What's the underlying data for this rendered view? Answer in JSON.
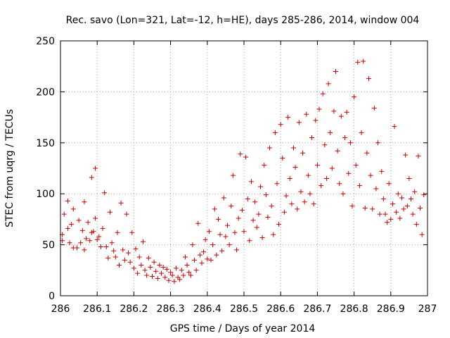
{
  "chart_data": {
    "type": "scatter",
    "title": "Rec. savo (Lon=321, Lat=-12, h=HE), days 285-286, 2014, window 004",
    "xlabel": "GPS time / Days of year 2014",
    "ylabel": "STEC from uqrg / TECUs",
    "xlim": [
      286,
      287
    ],
    "ylim": [
      0,
      250
    ],
    "xticks": [
      286,
      286.1,
      286.2,
      286.3,
      286.4,
      286.5,
      286.6,
      286.7,
      286.8,
      286.9,
      287
    ],
    "xtick_labels": [
      "286",
      "286.1",
      "286.2",
      "286.3",
      "286.4",
      "286.5",
      "286.6",
      "286.7",
      "286.8",
      "286.9",
      "287"
    ],
    "yticks": [
      0,
      50,
      100,
      150,
      200,
      250
    ],
    "ytick_labels": [
      "0",
      "50",
      "100",
      "150",
      "200",
      "250"
    ],
    "grid": true,
    "marker": "+",
    "color": "#cc0000",
    "points": [
      [
        286.005,
        54
      ],
      [
        286.005,
        60
      ],
      [
        286.01,
        80
      ],
      [
        286.02,
        93
      ],
      [
        286.02,
        66
      ],
      [
        286.025,
        52
      ],
      [
        286.03,
        70
      ],
      [
        286.035,
        47
      ],
      [
        286.035,
        85
      ],
      [
        286.045,
        47
      ],
      [
        286.05,
        74
      ],
      [
        286.055,
        52
      ],
      [
        286.06,
        64
      ],
      [
        286.065,
        92
      ],
      [
        286.065,
        45
      ],
      [
        286.07,
        56
      ],
      [
        286.075,
        72
      ],
      [
        286.08,
        54
      ],
      [
        286.085,
        62
      ],
      [
        286.085,
        116
      ],
      [
        286.09,
        63
      ],
      [
        286.095,
        76
      ],
      [
        286.095,
        125
      ],
      [
        286.1,
        55
      ],
      [
        286.105,
        58
      ],
      [
        286.11,
        48
      ],
      [
        286.115,
        66
      ],
      [
        286.12,
        101
      ],
      [
        286.125,
        48
      ],
      [
        286.13,
        37
      ],
      [
        286.135,
        82
      ],
      [
        286.14,
        52
      ],
      [
        286.145,
        44
      ],
      [
        286.15,
        38
      ],
      [
        286.155,
        62
      ],
      [
        286.16,
        30
      ],
      [
        286.165,
        91
      ],
      [
        286.17,
        45
      ],
      [
        286.175,
        35
      ],
      [
        286.18,
        80
      ],
      [
        286.185,
        42
      ],
      [
        286.19,
        33
      ],
      [
        286.195,
        62
      ],
      [
        286.2,
        27
      ],
      [
        286.205,
        46
      ],
      [
        286.21,
        22
      ],
      [
        286.215,
        38
      ],
      [
        286.22,
        30
      ],
      [
        286.225,
        53
      ],
      [
        286.23,
        25
      ],
      [
        286.235,
        20
      ],
      [
        286.24,
        37
      ],
      [
        286.245,
        28
      ],
      [
        286.25,
        19
      ],
      [
        286.255,
        33
      ],
      [
        286.26,
        24
      ],
      [
        286.265,
        17
      ],
      [
        286.27,
        30
      ],
      [
        286.275,
        22
      ],
      [
        286.28,
        28
      ],
      [
        286.285,
        18
      ],
      [
        286.29,
        26
      ],
      [
        286.295,
        15
      ],
      [
        286.3,
        23
      ],
      [
        286.305,
        20
      ],
      [
        286.31,
        14
      ],
      [
        286.315,
        27
      ],
      [
        286.32,
        18
      ],
      [
        286.325,
        16
      ],
      [
        286.33,
        25
      ],
      [
        286.335,
        20
      ],
      [
        286.34,
        38
      ],
      [
        286.345,
        30
      ],
      [
        286.35,
        23
      ],
      [
        286.355,
        20
      ],
      [
        286.36,
        50
      ],
      [
        286.365,
        35
      ],
      [
        286.37,
        25
      ],
      [
        286.375,
        71
      ],
      [
        286.38,
        40
      ],
      [
        286.385,
        32
      ],
      [
        286.39,
        43
      ],
      [
        286.395,
        55
      ],
      [
        286.4,
        36
      ],
      [
        286.405,
        63
      ],
      [
        286.41,
        35
      ],
      [
        286.415,
        50
      ],
      [
        286.42,
        85
      ],
      [
        286.425,
        40
      ],
      [
        286.43,
        75
      ],
      [
        286.435,
        60
      ],
      [
        286.44,
        44
      ],
      [
        286.445,
        96
      ],
      [
        286.45,
        58
      ],
      [
        286.455,
        69
      ],
      [
        286.46,
        50
      ],
      [
        286.465,
        88
      ],
      [
        286.47,
        118
      ],
      [
        286.475,
        62
      ],
      [
        286.48,
        45
      ],
      [
        286.485,
        76
      ],
      [
        286.49,
        139
      ],
      [
        286.495,
        84
      ],
      [
        286.5,
        63
      ],
      [
        286.505,
        136
      ],
      [
        286.51,
        95
      ],
      [
        286.515,
        54
      ],
      [
        286.52,
        112
      ],
      [
        286.525,
        74
      ],
      [
        286.53,
        92
      ],
      [
        286.535,
        67
      ],
      [
        286.54,
        80
      ],
      [
        286.545,
        107
      ],
      [
        286.55,
        57
      ],
      [
        286.555,
        128
      ],
      [
        286.56,
        99
      ],
      [
        286.565,
        77
      ],
      [
        286.57,
        145
      ],
      [
        286.575,
        88
      ],
      [
        286.58,
        60
      ],
      [
        286.585,
        160
      ],
      [
        286.59,
        110
      ],
      [
        286.595,
        70
      ],
      [
        286.6,
        168
      ],
      [
        286.605,
        135
      ],
      [
        286.61,
        82
      ],
      [
        286.615,
        98
      ],
      [
        286.62,
        175
      ],
      [
        286.625,
        115
      ],
      [
        286.63,
        90
      ],
      [
        286.635,
        145
      ],
      [
        286.64,
        126
      ],
      [
        286.645,
        85
      ],
      [
        286.65,
        170
      ],
      [
        286.655,
        102
      ],
      [
        286.66,
        140
      ],
      [
        286.665,
        92
      ],
      [
        286.67,
        178
      ],
      [
        286.675,
        118
      ],
      [
        286.68,
        100
      ],
      [
        286.685,
        155
      ],
      [
        286.69,
        90
      ],
      [
        286.695,
        172
      ],
      [
        286.7,
        128
      ],
      [
        286.705,
        183
      ],
      [
        286.71,
        108
      ],
      [
        286.715,
        198
      ],
      [
        286.72,
        148
      ],
      [
        286.725,
        115
      ],
      [
        286.73,
        208
      ],
      [
        286.735,
        160
      ],
      [
        286.74,
        125
      ],
      [
        286.745,
        181
      ],
      [
        286.75,
        220
      ],
      [
        286.755,
        142
      ],
      [
        286.76,
        110
      ],
      [
        286.765,
        176
      ],
      [
        286.77,
        100
      ],
      [
        286.775,
        155
      ],
      [
        286.78,
        180
      ],
      [
        286.785,
        120
      ],
      [
        286.79,
        150
      ],
      [
        286.795,
        88
      ],
      [
        286.8,
        195
      ],
      [
        286.805,
        128
      ],
      [
        286.81,
        229
      ],
      [
        286.815,
        108
      ],
      [
        286.82,
        160
      ],
      [
        286.825,
        230
      ],
      [
        286.83,
        86
      ],
      [
        286.835,
        140
      ],
      [
        286.84,
        213
      ],
      [
        286.845,
        118
      ],
      [
        286.85,
        85
      ],
      [
        286.855,
        184
      ],
      [
        286.86,
        105
      ],
      [
        286.865,
        150
      ],
      [
        286.87,
        80
      ],
      [
        286.875,
        122
      ],
      [
        286.88,
        95
      ],
      [
        286.885,
        80
      ],
      [
        286.89,
        72
      ],
      [
        286.895,
        110
      ],
      [
        286.9,
        75
      ],
      [
        286.905,
        90
      ],
      [
        286.91,
        166
      ],
      [
        286.915,
        82
      ],
      [
        286.92,
        100
      ],
      [
        286.925,
        76
      ],
      [
        286.93,
        96
      ],
      [
        286.935,
        85
      ],
      [
        286.94,
        138
      ],
      [
        286.945,
        88
      ],
      [
        286.95,
        115
      ],
      [
        286.955,
        95
      ],
      [
        286.96,
        80
      ],
      [
        286.965,
        102
      ],
      [
        286.97,
        70
      ],
      [
        286.975,
        137
      ],
      [
        286.98,
        86
      ],
      [
        286.985,
        60
      ],
      [
        286.99,
        99
      ]
    ]
  }
}
